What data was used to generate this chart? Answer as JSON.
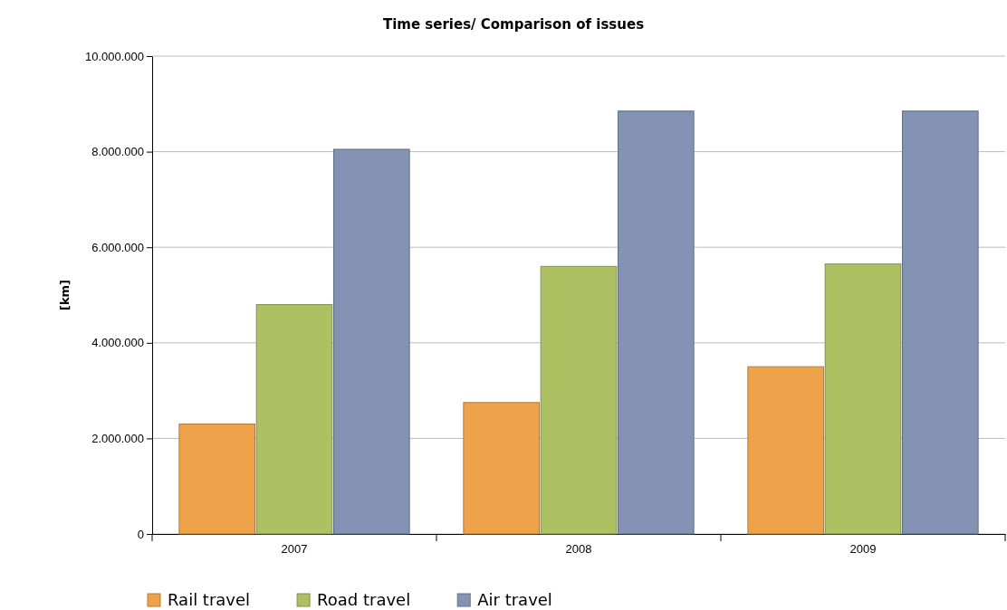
{
  "chart_data": {
    "type": "bar",
    "title": "Time series/ Comparison of issues",
    "ylabel": "[km]",
    "categories": [
      "2007",
      "2008",
      "2009"
    ],
    "series": [
      {
        "name": "Rail travel",
        "color": "#eea24a",
        "values": [
          2300000,
          2750000,
          3500000
        ]
      },
      {
        "name": "Road travel",
        "color": "#adc062",
        "values": [
          4800000,
          5600000,
          5650000
        ]
      },
      {
        "name": "Air travel",
        "color": "#8492b4",
        "values": [
          8050000,
          8850000,
          8850000
        ]
      }
    ],
    "ylim": [
      0,
      10000000
    ],
    "yticks": [
      {
        "value": 0,
        "label": "0"
      },
      {
        "value": 2000000,
        "label": "2.000.000"
      },
      {
        "value": 4000000,
        "label": "4.000.000"
      },
      {
        "value": 6000000,
        "label": "6.000.000"
      },
      {
        "value": 8000000,
        "label": "8.000.000"
      },
      {
        "value": 10000000,
        "label": "10.000.000"
      }
    ],
    "grid": "y",
    "legend": "bottom"
  }
}
